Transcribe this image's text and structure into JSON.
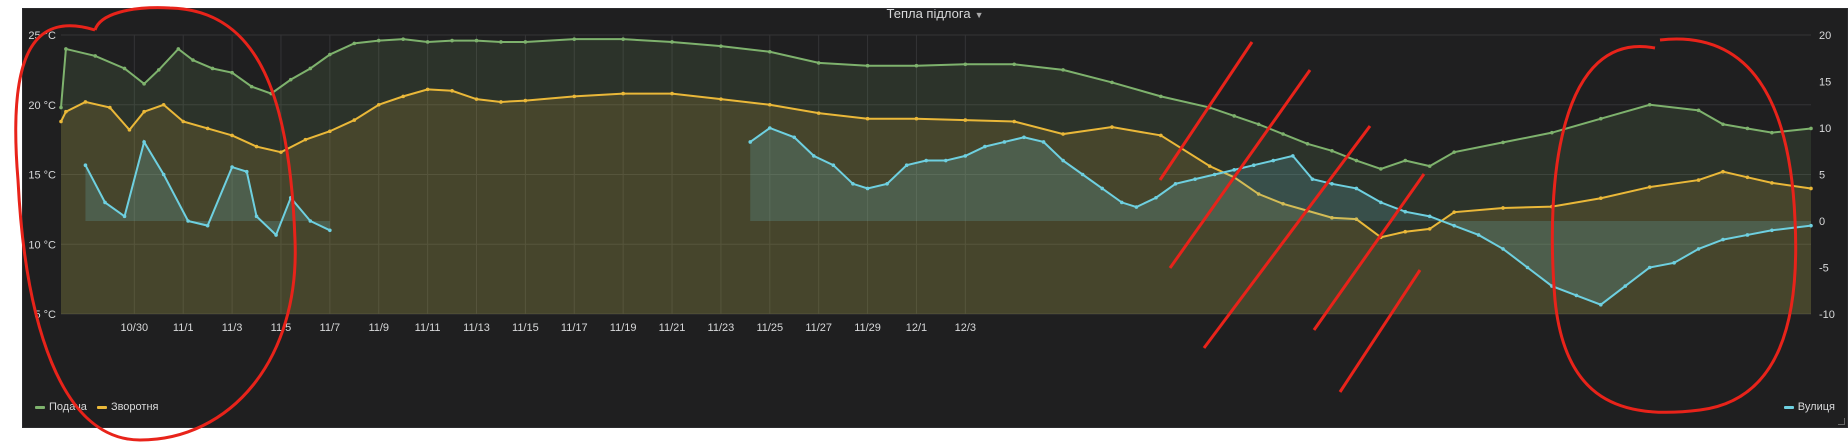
{
  "panel": {
    "title": "Тепла підлога"
  },
  "chart_data": {
    "type": "line",
    "x_ticks": [
      "10/30",
      "11/1",
      "11/3",
      "11/5",
      "11/7",
      "11/9",
      "11/11",
      "11/13",
      "11/15",
      "11/17",
      "11/19",
      "11/21",
      "11/23",
      "11/25",
      "11/27",
      "11/29",
      "12/1",
      "12/3"
    ],
    "x_range": [
      -1.5,
      34.3
    ],
    "y_left": {
      "range": [
        5,
        25
      ],
      "ticks": [
        5,
        10,
        15,
        20,
        25
      ],
      "tick_labels": [
        "5 °C",
        "10 °C",
        "15 °C",
        "20 °C",
        "25 °C"
      ]
    },
    "y_right": {
      "range": [
        -10,
        20
      ],
      "ticks": [
        -10,
        -5,
        0,
        5,
        10,
        15,
        20
      ],
      "tick_labels": [
        "-10",
        "-5",
        "0",
        "5",
        "10",
        "15",
        "20"
      ]
    },
    "grid": true,
    "series": [
      {
        "name": "Подача",
        "axis": "left",
        "color": "#7eb26d",
        "x": [
          -1.5,
          -1.4,
          -0.8,
          -0.2,
          0.2,
          0.5,
          0.9,
          1.2,
          1.6,
          2.0,
          2.4,
          2.8,
          3.2,
          3.6,
          4.0,
          4.5,
          5.0,
          5.5,
          6.0,
          6.5,
          7.0,
          7.5,
          8,
          9,
          10,
          11,
          12,
          13,
          14,
          15,
          16,
          17,
          18,
          19,
          20,
          21,
          22,
          22.5,
          23,
          23.5,
          24,
          24.5,
          25,
          25.5,
          26,
          26.5,
          27,
          28,
          29,
          30,
          31,
          32,
          32.5,
          33,
          33.5,
          34.3
        ],
        "values": [
          19.8,
          24.0,
          23.5,
          22.6,
          21.5,
          22.5,
          24.0,
          23.2,
          22.6,
          22.3,
          21.3,
          20.8,
          21.8,
          22.6,
          23.6,
          24.4,
          24.6,
          24.7,
          24.5,
          24.6,
          24.6,
          24.5,
          24.5,
          24.7,
          24.7,
          24.5,
          24.2,
          23.8,
          23.0,
          22.8,
          22.8,
          22.9,
          22.9,
          22.5,
          21.6,
          20.6,
          19.8,
          19.2,
          18.6,
          17.9,
          17.2,
          16.7,
          16.0,
          15.4,
          16.0,
          15.6,
          16.6,
          17.3,
          18.0,
          19.0,
          20.0,
          19.6,
          18.6,
          18.3,
          18.0,
          18.3
        ]
      },
      {
        "name": "Зворотня",
        "axis": "left",
        "color": "#eab839",
        "x": [
          -1.5,
          -1.4,
          -1.0,
          -0.5,
          -0.1,
          0.2,
          0.6,
          1.0,
          1.5,
          2.0,
          2.5,
          3.0,
          3.5,
          4.0,
          4.5,
          5.0,
          5.5,
          6.0,
          6.5,
          7.0,
          7.5,
          8,
          9,
          10,
          11,
          12,
          13,
          14,
          15,
          16,
          17,
          18,
          19,
          20,
          21,
          22,
          22.5,
          23,
          23.5,
          24,
          24.5,
          25,
          25.5,
          26,
          26.5,
          27,
          28,
          29,
          30,
          31,
          32,
          32.5,
          33,
          33.5,
          34.3
        ],
        "values": [
          18.8,
          19.5,
          20.2,
          19.8,
          18.2,
          19.5,
          20.0,
          18.8,
          18.3,
          17.8,
          17.0,
          16.6,
          17.5,
          18.1,
          18.9,
          20.0,
          20.6,
          21.1,
          21.0,
          20.4,
          20.2,
          20.3,
          20.6,
          20.8,
          20.8,
          20.4,
          20.0,
          19.4,
          19.0,
          19.0,
          18.9,
          18.8,
          17.9,
          18.4,
          17.8,
          15.6,
          14.8,
          13.6,
          12.9,
          12.4,
          11.9,
          11.8,
          10.5,
          10.9,
          11.1,
          12.3,
          12.6,
          12.7,
          13.3,
          14.1,
          14.6,
          15.2,
          14.8,
          14.4,
          14.0
        ]
      },
      {
        "name": "Вулиця",
        "axis": "right",
        "color": "#6ed0e0",
        "x": [
          -1.0,
          -0.6,
          -0.2,
          0.2,
          0.6,
          1.1,
          1.5,
          2.0,
          2.3,
          2.5,
          2.9,
          3.2,
          3.6,
          4.0,
          4.4,
          4.8,
          5.3,
          5.7,
          6.1,
          6.5,
          7.0,
          7.5,
          7.9,
          8.3,
          8.7,
          9.0,
          9.3,
          9.6,
          10,
          10.4,
          10.8,
          11.1,
          11.5,
          12.0,
          12.6,
          13.0,
          13.5,
          13.9,
          14.3,
          14.7,
          15.0,
          15.4,
          15.8,
          16.2,
          16.6,
          17.0,
          17.4,
          17.8,
          18.2,
          18.6,
          19.0,
          19.4,
          19.8,
          20.2,
          20.5,
          20.9,
          21.3,
          21.7,
          22.1,
          22.5,
          22.9,
          23.3,
          23.7,
          24.1,
          24.5,
          25,
          25.5,
          26,
          26.5,
          27,
          27.5,
          28,
          28.5,
          29,
          29.5,
          30,
          30.5,
          31,
          31.5,
          32,
          32.5,
          33,
          33.5,
          34.3
        ],
        "values": [
          6.0,
          2.0,
          0.5,
          8.5,
          5.0,
          0.0,
          -0.5,
          5.8,
          5.3,
          0.5,
          -1.5,
          2.5,
          0.0,
          -1.0,
          null,
          null,
          null,
          null,
          null,
          null,
          null,
          null,
          null,
          null,
          null,
          null,
          null,
          null,
          null,
          null,
          null,
          null,
          null,
          null,
          8.5,
          10.0,
          9.0,
          7.0,
          6.0,
          4.0,
          3.5,
          4.0,
          6.0,
          6.5,
          6.5,
          7.0,
          8.0,
          8.5,
          9.0,
          8.5,
          6.5,
          5.0,
          3.5,
          2.0,
          1.5,
          2.5,
          4.0,
          4.5,
          5.0,
          5.5,
          6.0,
          6.5,
          7.0,
          4.5,
          4.0,
          3.5,
          2.0,
          1.0,
          0.5,
          -0.5,
          -1.5,
          -3.0,
          -5.0,
          -7.0,
          -8.0,
          -9.0,
          -7.0,
          -5.0,
          -4.5,
          -3.0,
          -2.0,
          -1.5,
          -1.0,
          -0.5
        ]
      }
    ],
    "legend": {
      "left": [
        "Подача",
        "Зворотня"
      ],
      "right": [
        "Вулиця"
      ]
    }
  }
}
